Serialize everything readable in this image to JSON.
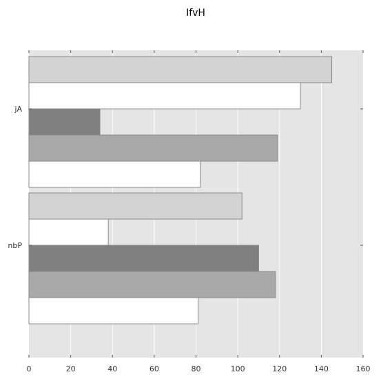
{
  "chart_data": {
    "type": "bar",
    "orientation": "horizontal",
    "title": "IfvH",
    "xlabel": "",
    "ylabel": "",
    "xlim": [
      0,
      160
    ],
    "x_ticks": [
      0,
      20,
      40,
      60,
      80,
      100,
      120,
      140,
      160
    ],
    "grid": true,
    "category_labels": [
      "jA",
      "nbP"
    ],
    "groups": [
      {
        "label": "jA",
        "bars": [
          {
            "value": 145,
            "color": "#d3d3d3"
          },
          {
            "value": 130,
            "color": "#ffffff"
          },
          {
            "value": 34,
            "color": "#808080"
          },
          {
            "value": 119,
            "color": "#a9a9a9"
          },
          {
            "value": 82,
            "color": "#ffffff"
          }
        ]
      },
      {
        "label": "nbP",
        "bars": [
          {
            "value": 102,
            "color": "#d3d3d3"
          },
          {
            "value": 38,
            "color": "#ffffff"
          },
          {
            "value": 110,
            "color": "#808080"
          },
          {
            "value": 118,
            "color": "#a9a9a9"
          },
          {
            "value": 81,
            "color": "#ffffff"
          }
        ]
      }
    ],
    "colors": {
      "plot_background": "#e5e5e5",
      "grid": "#ffffff",
      "bar_edge": "#8a8a8a"
    }
  }
}
